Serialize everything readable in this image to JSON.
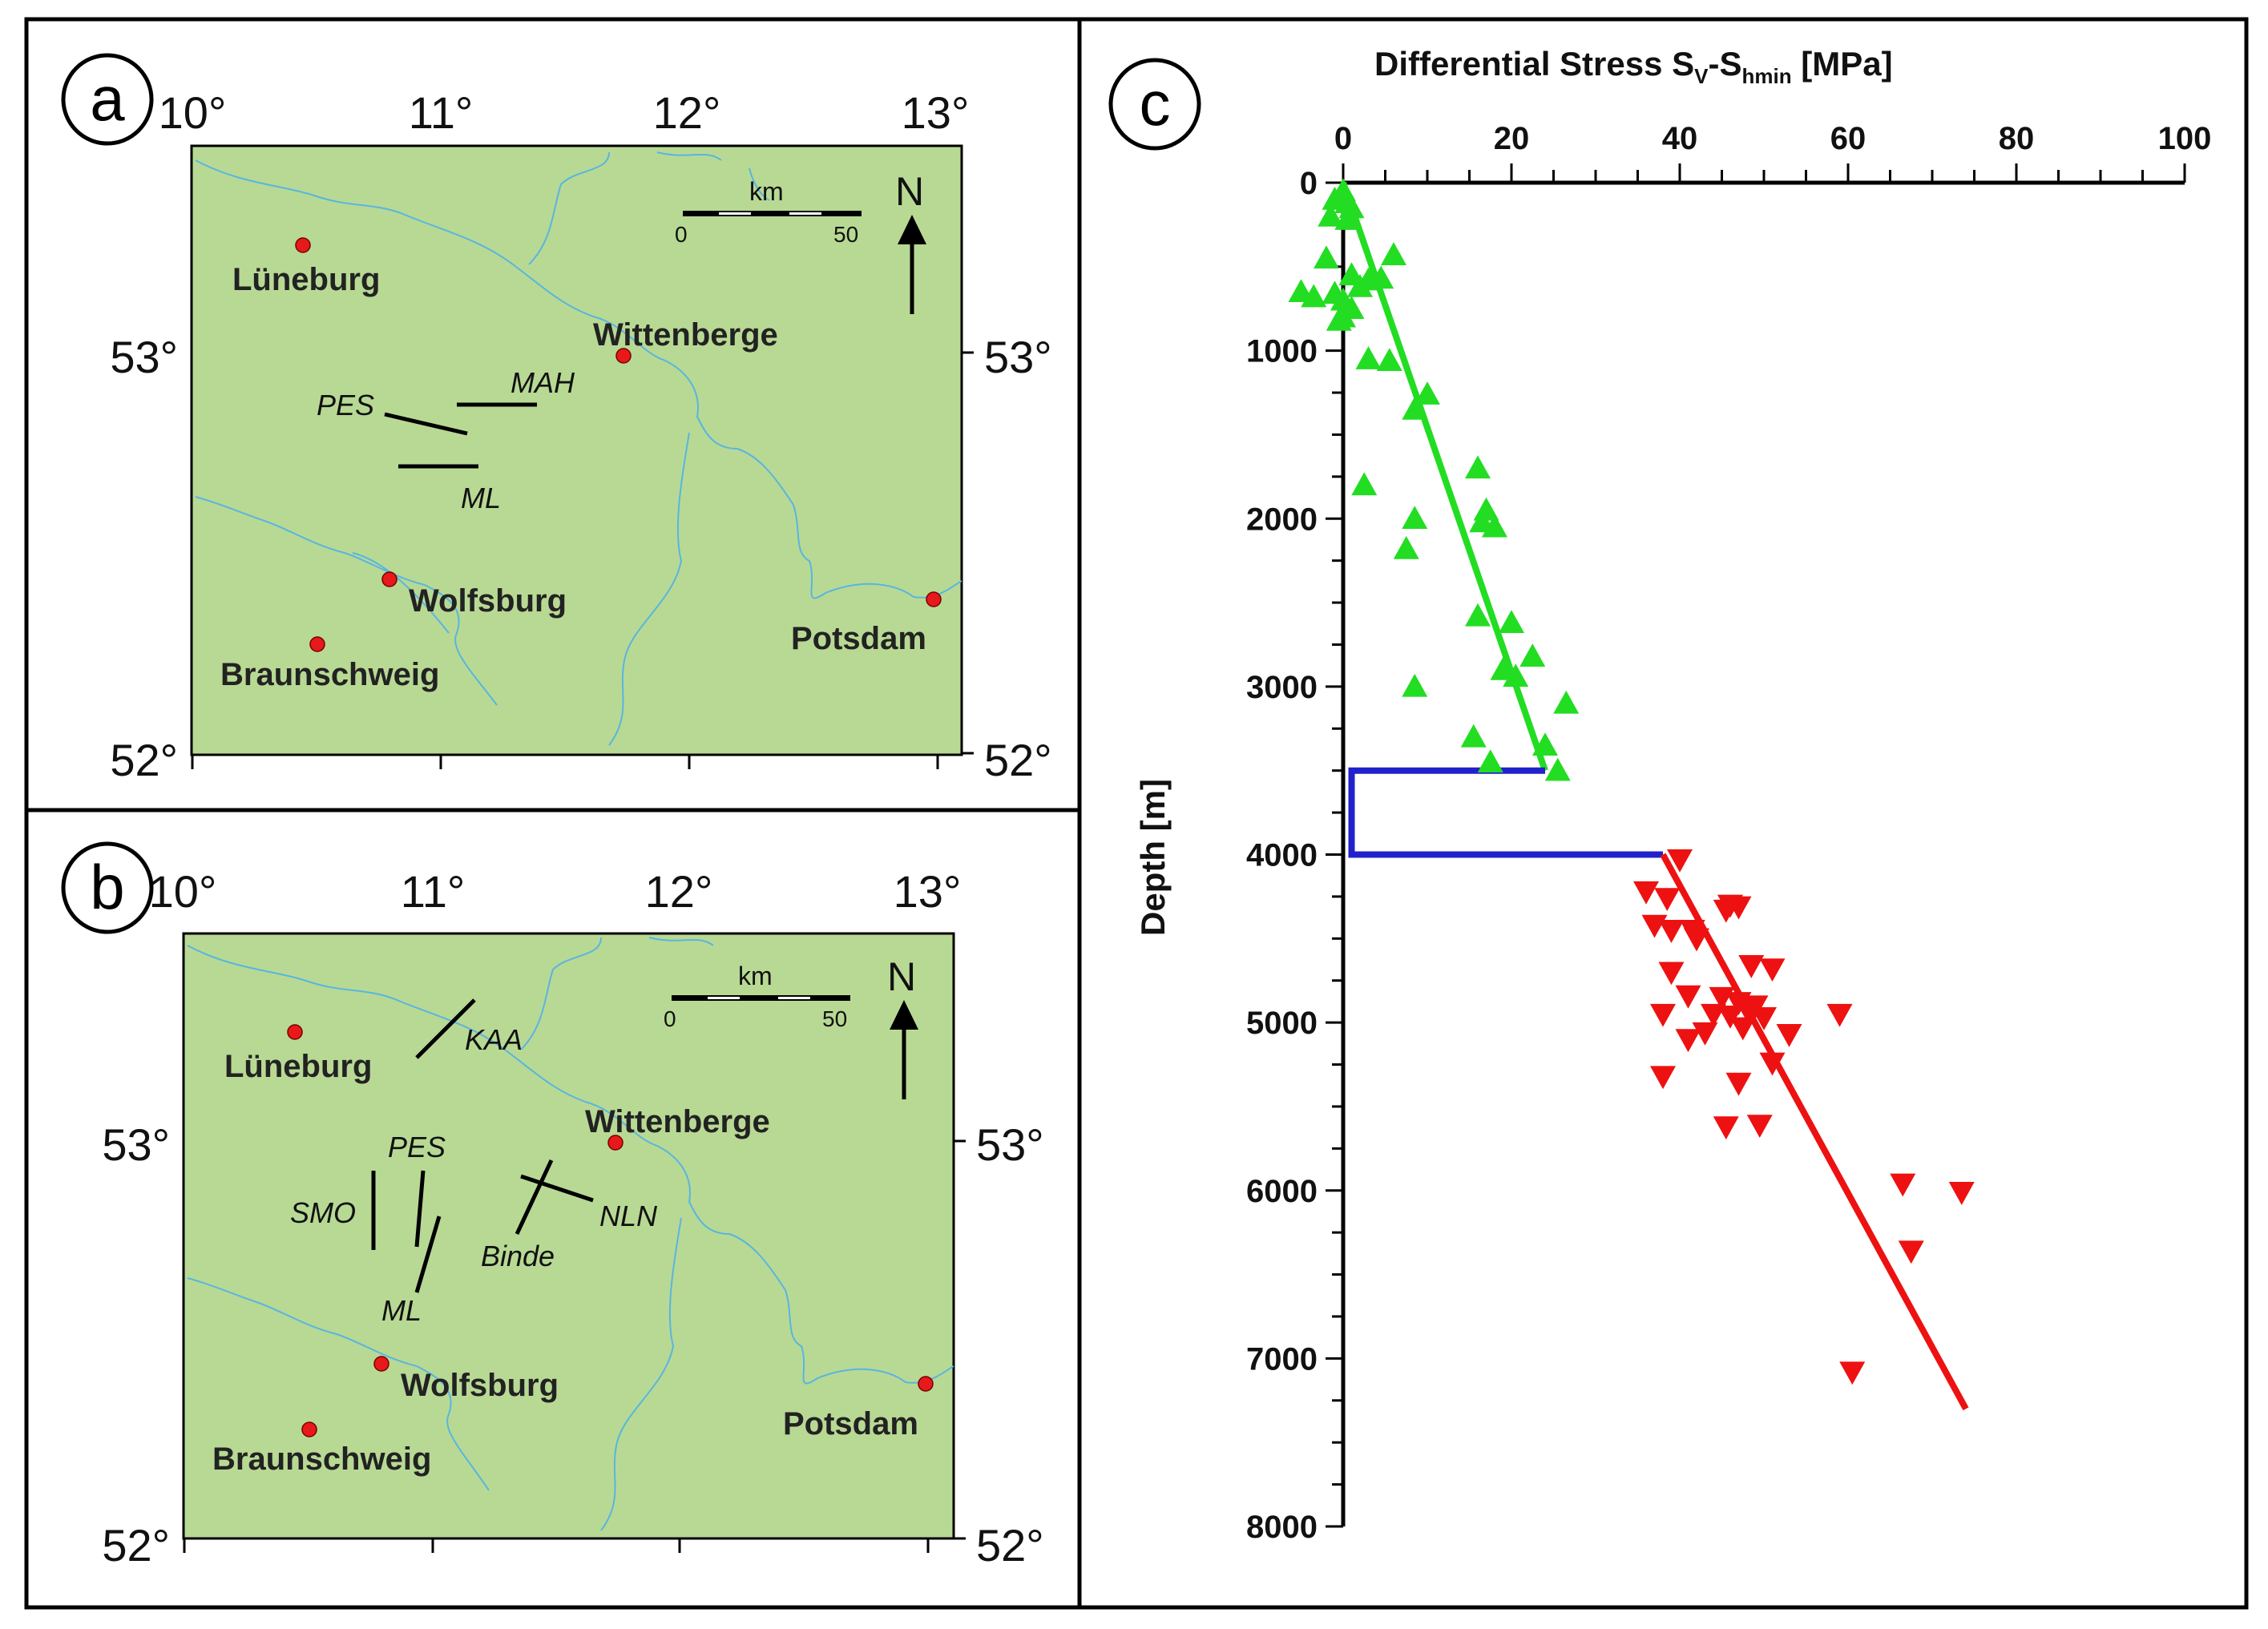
{
  "panels": {
    "a": {
      "letter": "a",
      "lon_labels": [
        "10°",
        "11°",
        "12°",
        "13°"
      ],
      "lat_labels": {
        "top": "53°",
        "bottom": "52°"
      },
      "cities": [
        {
          "name": "Lüneburg",
          "lon": 10.45,
          "lat": 53.25
        },
        {
          "name": "Wittenberge",
          "lon": 11.75,
          "lat": 53.0
        },
        {
          "name": "Wolfsburg",
          "lon": 10.8,
          "lat": 52.42
        },
        {
          "name": "Braunschweig",
          "lon": 10.5,
          "lat": 52.27
        },
        {
          "name": "Potsdam",
          "lon": 13.03,
          "lat": 52.4
        }
      ],
      "faults": [
        "PES",
        "MAH",
        "ML"
      ],
      "scale": {
        "unit": "km",
        "min": "0",
        "max": "50"
      },
      "north": "N"
    },
    "b": {
      "letter": "b",
      "lon_labels": [
        "10°",
        "11°",
        "12°",
        "13°"
      ],
      "lat_labels": {
        "top": "53°",
        "bottom": "52°"
      },
      "cities": [
        {
          "name": "Lüneburg",
          "lon": 10.45,
          "lat": 53.25
        },
        {
          "name": "Wittenberge",
          "lon": 11.75,
          "lat": 53.0
        },
        {
          "name": "Wolfsburg",
          "lon": 10.8,
          "lat": 52.42
        },
        {
          "name": "Braunschweig",
          "lon": 10.5,
          "lat": 52.27
        },
        {
          "name": "Potsdam",
          "lon": 13.03,
          "lat": 52.4
        }
      ],
      "faults": [
        "KAA",
        "PES",
        "SMO",
        "ML",
        "Binde",
        "NLN"
      ],
      "scale": {
        "unit": "km",
        "min": "0",
        "max": "50"
      },
      "north": "N"
    }
  },
  "panel_c_letter": "c",
  "chart_data": {
    "type": "scatter",
    "title": "Differential Stress S",
    "title_sub1": "V",
    "title_mid": "-S",
    "title_sub2": "hmin",
    "title_end": " [MPa]",
    "xlabel": "Differential Stress Sv-Shmin [MPa]",
    "ylabel": "Depth [m]",
    "xlim": [
      0,
      100
    ],
    "ylim": [
      0,
      8000
    ],
    "x_ticks": [
      "0",
      "20",
      "40",
      "60",
      "80",
      "100"
    ],
    "y_ticks": [
      "0",
      "1000",
      "2000",
      "3000",
      "4000",
      "5000",
      "6000",
      "7000",
      "8000"
    ],
    "colors": {
      "upper": "#22dd22",
      "lower": "#ee1111",
      "profile": "#2222cc"
    },
    "series": [
      {
        "marker": "triangle-up",
        "points": [
          [
            0,
            50
          ],
          [
            -1,
            100
          ],
          [
            0.5,
            120
          ],
          [
            1,
            150
          ],
          [
            -1.5,
            200
          ],
          [
            0.5,
            220
          ],
          [
            -2,
            450
          ],
          [
            6,
            430
          ],
          [
            1,
            550
          ],
          [
            3,
            580
          ],
          [
            4.5,
            570
          ],
          [
            2,
            620
          ],
          [
            -5,
            650
          ],
          [
            -1,
            660
          ],
          [
            -3.5,
            680
          ],
          [
            0,
            700
          ],
          [
            1,
            750
          ],
          [
            0,
            800
          ],
          [
            -0.5,
            820
          ],
          [
            3,
            1050
          ],
          [
            5.5,
            1060
          ],
          [
            10,
            1260
          ],
          [
            8.5,
            1350
          ],
          [
            16,
            1700
          ],
          [
            2.5,
            1800
          ],
          [
            8.5,
            2000
          ],
          [
            17,
            1950
          ],
          [
            16.5,
            2020
          ],
          [
            18,
            2050
          ],
          [
            7.5,
            2180
          ],
          [
            16,
            2580
          ],
          [
            20,
            2620
          ],
          [
            22.5,
            2820
          ],
          [
            19,
            2900
          ],
          [
            20.5,
            2940
          ],
          [
            8.5,
            3000
          ],
          [
            26.5,
            3100
          ],
          [
            15.5,
            3300
          ],
          [
            24,
            3350
          ],
          [
            17.5,
            3450
          ],
          [
            25.5,
            3500
          ]
        ]
      },
      {
        "marker": "triangle-down",
        "points": [
          [
            40,
            4030
          ],
          [
            36,
            4220
          ],
          [
            38.5,
            4260
          ],
          [
            46,
            4300
          ],
          [
            47,
            4310
          ],
          [
            45.5,
            4330
          ],
          [
            37,
            4420
          ],
          [
            39,
            4450
          ],
          [
            41.5,
            4450
          ],
          [
            42,
            4500
          ],
          [
            39,
            4700
          ],
          [
            48.5,
            4660
          ],
          [
            51,
            4680
          ],
          [
            41,
            4840
          ],
          [
            45,
            4850
          ],
          [
            47,
            4880
          ],
          [
            49,
            4900
          ],
          [
            48,
            4920
          ],
          [
            44,
            4950
          ],
          [
            38,
            4950
          ],
          [
            46,
            4960
          ],
          [
            50,
            4970
          ],
          [
            59,
            4950
          ],
          [
            47.5,
            5030
          ],
          [
            43,
            5060
          ],
          [
            41,
            5100
          ],
          [
            53,
            5070
          ],
          [
            51,
            5240
          ],
          [
            38,
            5320
          ],
          [
            47,
            5360
          ],
          [
            45.5,
            5620
          ],
          [
            49.5,
            5610
          ],
          [
            66.5,
            5960
          ],
          [
            73.5,
            6010
          ],
          [
            67.5,
            6360
          ],
          [
            60.5,
            7080
          ]
        ]
      }
    ],
    "fit_upper": [
      [
        0,
        0
      ],
      [
        24,
        3500
      ]
    ],
    "profile": [
      [
        24,
        3500
      ],
      [
        1,
        3500
      ],
      [
        1,
        4000
      ],
      [
        38,
        4000
      ]
    ],
    "fit_lower": [
      [
        38,
        4000
      ],
      [
        74,
        7300
      ]
    ]
  }
}
